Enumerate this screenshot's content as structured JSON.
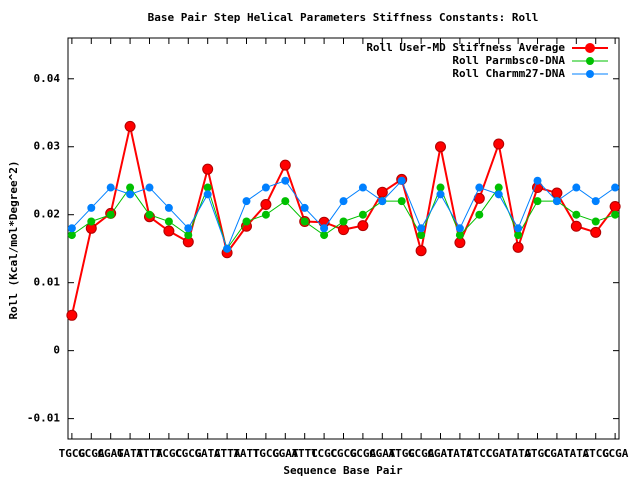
{
  "chart_data": {
    "type": "line",
    "title": "Base Pair Step Helical Parameters Stiffness Constants: Roll",
    "x_label": "Sequence Base Pair",
    "y_label": "Roll (Kcal/mol*Degree^2)",
    "categories": [
      "TGCG",
      "GCGA",
      "CGAT",
      "GATT",
      "ATTA",
      "TCGC",
      "CGCG",
      "GATC",
      "ATTA",
      "TATT",
      "TGCG",
      "CGAT",
      "ATTC",
      "TCGC",
      "CGCG",
      "GCGA",
      "CGAT",
      "ATGC",
      "GCGA",
      "CGAT",
      "TATC",
      "ATCC",
      "CGAT",
      "TATG",
      "ATGC",
      "CGAT",
      "TATC",
      "ATCG",
      "CCGA"
    ],
    "series": [
      {
        "name": "Roll User-MD Stiffness Average",
        "color": "#ff0000",
        "values": [
          0.0052,
          0.018,
          0.0202,
          0.033,
          0.0197,
          0.0176,
          0.016,
          0.0267,
          0.0144,
          0.0183,
          0.0215,
          0.0273,
          0.019,
          0.0189,
          0.0178,
          0.0184,
          0.0233,
          0.0252,
          0.0147,
          0.03,
          0.0159,
          0.0224,
          0.0304,
          0.0152,
          0.024,
          0.0232,
          0.0183,
          0.0174,
          0.0212
        ]
      },
      {
        "name": "Roll Parmbsc0-DNA",
        "color": "#00c000",
        "values": [
          0.017,
          0.019,
          0.02,
          0.024,
          0.02,
          0.019,
          0.017,
          0.024,
          0.015,
          0.019,
          0.02,
          0.022,
          0.019,
          0.017,
          0.019,
          0.02,
          0.022,
          0.022,
          0.017,
          0.024,
          0.017,
          0.02,
          0.024,
          0.017,
          0.022,
          0.022,
          0.02,
          0.019,
          0.02
        ]
      },
      {
        "name": "Roll Charmm27-DNA",
        "color": "#0080ff",
        "values": [
          0.018,
          0.021,
          0.024,
          0.023,
          0.024,
          0.021,
          0.018,
          0.023,
          0.015,
          0.022,
          0.024,
          0.025,
          0.021,
          0.018,
          0.022,
          0.024,
          0.022,
          0.025,
          0.018,
          0.023,
          0.018,
          0.024,
          0.023,
          0.018,
          0.025,
          0.022,
          0.024,
          0.022,
          0.024
        ]
      }
    ],
    "ylim": [
      -0.013,
      0.046
    ],
    "yticks": [
      -0.01,
      0,
      0.01,
      0.02,
      0.03,
      0.04
    ],
    "legend": "top-right"
  }
}
